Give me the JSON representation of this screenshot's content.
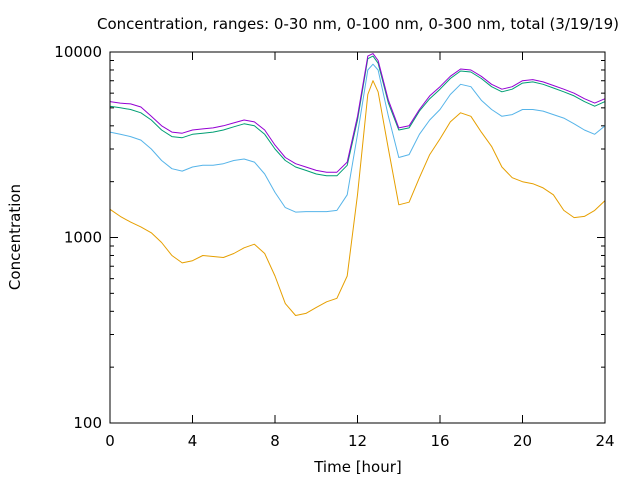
{
  "chart_data": {
    "type": "line",
    "title": "Concentration, ranges: 0-30 nm, 0-100 nm, 0-300 nm, total (3/19/19)",
    "xlabel": "Time [hour]",
    "ylabel": "Concentration",
    "xlim": [
      0,
      24
    ],
    "ylim": [
      100,
      10000
    ],
    "yscale": "log",
    "grid": false,
    "legend": "none",
    "x_ticks": [
      0,
      4,
      8,
      12,
      16,
      20,
      24
    ],
    "x_tick_labels": [
      "0",
      "4",
      "8",
      "12",
      "16",
      "20",
      "24"
    ],
    "y_ticks": [
      100,
      1000,
      10000
    ],
    "y_tick_labels": [
      "100",
      "1000",
      "10000"
    ],
    "x": [
      0,
      0.5,
      1,
      1.5,
      2,
      2.5,
      3,
      3.5,
      4,
      4.5,
      5,
      5.5,
      6,
      6.5,
      7,
      7.5,
      8,
      8.5,
      9,
      9.5,
      10,
      10.5,
      11,
      11.5,
      12,
      12.5,
      12.75,
      13,
      13.5,
      14,
      14.5,
      15,
      15.5,
      16,
      16.5,
      17,
      17.5,
      18,
      18.5,
      19,
      19.5,
      20,
      20.5,
      21,
      21.5,
      22,
      22.5,
      23,
      23.5,
      24
    ],
    "series": [
      {
        "color": "#e69f00",
        "values": [
          1420,
          1300,
          1210,
          1140,
          1060,
          940,
          800,
          730,
          750,
          800,
          790,
          780,
          820,
          880,
          920,
          820,
          620,
          440,
          380,
          390,
          420,
          450,
          470,
          620,
          1700,
          5900,
          7000,
          6100,
          3000,
          1500,
          1550,
          2100,
          2800,
          3400,
          4200,
          4700,
          4500,
          3700,
          3100,
          2400,
          2100,
          2000,
          1950,
          1850,
          1700,
          1400,
          1280,
          1300,
          1400,
          1580
        ]
      },
      {
        "color": "#56b4e9",
        "values": [
          3700,
          3600,
          3500,
          3350,
          3000,
          2600,
          2350,
          2280,
          2400,
          2450,
          2450,
          2500,
          2600,
          2650,
          2550,
          2200,
          1750,
          1450,
          1370,
          1380,
          1380,
          1380,
          1400,
          1700,
          3600,
          8000,
          8600,
          8000,
          4500,
          2700,
          2800,
          3600,
          4300,
          4900,
          5900,
          6700,
          6500,
          5500,
          4900,
          4500,
          4600,
          4900,
          4900,
          4800,
          4600,
          4400,
          4100,
          3800,
          3600,
          4000
        ]
      },
      {
        "color": "#009e73",
        "values": [
          5100,
          5000,
          4900,
          4700,
          4300,
          3800,
          3500,
          3450,
          3600,
          3650,
          3700,
          3800,
          3950,
          4100,
          4000,
          3600,
          3000,
          2600,
          2400,
          2300,
          2200,
          2150,
          2150,
          2450,
          4300,
          9200,
          9500,
          8700,
          5300,
          3800,
          3900,
          4800,
          5600,
          6300,
          7200,
          7900,
          7800,
          7200,
          6500,
          6100,
          6300,
          6800,
          6900,
          6700,
          6400,
          6100,
          5800,
          5400,
          5100,
          5400
        ]
      },
      {
        "color": "#9400d3",
        "values": [
          5400,
          5300,
          5250,
          5050,
          4500,
          4000,
          3700,
          3650,
          3800,
          3850,
          3900,
          4000,
          4150,
          4300,
          4200,
          3800,
          3150,
          2700,
          2500,
          2400,
          2300,
          2250,
          2250,
          2550,
          4500,
          9500,
          9800,
          9000,
          5500,
          3900,
          4000,
          4900,
          5800,
          6500,
          7400,
          8100,
          8000,
          7400,
          6700,
          6300,
          6500,
          7000,
          7100,
          6900,
          6600,
          6300,
          6000,
          5600,
          5300,
          5600
        ]
      }
    ]
  }
}
